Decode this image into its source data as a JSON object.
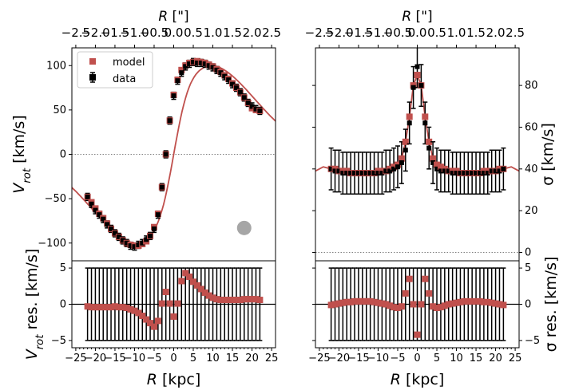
{
  "chart_data": [
    {
      "panel": "rotation-curve",
      "type": "scatter",
      "ylabel": "V_rot [km/s]",
      "top_xlabel": "R [\"]",
      "ylim": [
        -120,
        120
      ],
      "xlim": [
        -26,
        26
      ],
      "yticks": [
        -100,
        -50,
        0,
        50,
        100
      ],
      "top_xticks": [
        "−2.5",
        "−2.0",
        "−1.5",
        "−1.0",
        "−0.5",
        "0.0",
        "0.5",
        "1.0",
        "1.5",
        "2.0",
        "2.5"
      ],
      "legend": {
        "position": "upper left",
        "entries": [
          "model",
          "data"
        ]
      },
      "colors": {
        "model": "#c0504d",
        "data": "#000000",
        "beam": "#a6a6a6"
      },
      "beam_marker": {
        "x": 18,
        "y": -83
      },
      "x": [
        -22,
        -21,
        -20,
        -19,
        -18,
        -17,
        -16,
        -15,
        -14,
        -13,
        -12,
        -11,
        -10,
        -9,
        -8,
        -7,
        -6,
        -5,
        -4,
        -3,
        -2,
        -1,
        0,
        1,
        2,
        3,
        4,
        5,
        6,
        7,
        8,
        9,
        10,
        11,
        12,
        13,
        14,
        15,
        16,
        17,
        18,
        19,
        20,
        21,
        22
      ],
      "model": [
        -48,
        -54,
        -61,
        -67,
        -72,
        -78,
        -84,
        -89,
        -93,
        -97,
        -100,
        -102,
        -103,
        -103,
        -101,
        -98,
        -92,
        -82,
        -67,
        -37,
        0,
        38,
        67,
        84,
        95,
        100,
        103,
        104,
        105,
        104,
        103,
        101,
        99,
        96,
        93,
        89,
        85,
        80,
        75,
        70,
        64,
        58,
        52,
        50,
        49
      ],
      "data": [
        -48,
        -56,
        -63,
        -68,
        -73,
        -79,
        -84,
        -89,
        -93,
        -97,
        -100,
        -103,
        -104,
        -102,
        -100,
        -96,
        -92,
        -84,
        -68,
        -37,
        0,
        38,
        66,
        83,
        92,
        99,
        102,
        104,
        103,
        103,
        102,
        100,
        98,
        95,
        92,
        88,
        84,
        79,
        75,
        70,
        64,
        58,
        54,
        51,
        49
      ],
      "err": 4
    },
    {
      "panel": "dispersion",
      "type": "scatter",
      "ylabel": "σ [km/s]",
      "top_xlabel": "R [\"]",
      "ylim": [
        -4,
        98
      ],
      "xlim": [
        -26,
        26
      ],
      "yticks": [
        0,
        20,
        40,
        60,
        80
      ],
      "top_xticks": [
        "−2.5",
        "−2.0",
        "−1.5",
        "−1.0",
        "−0.5",
        "0.0",
        "0.5",
        "1.0",
        "1.5",
        "2.0",
        "2.5"
      ],
      "x": [
        -22,
        -21,
        -20,
        -19,
        -18,
        -17,
        -16,
        -15,
        -14,
        -13,
        -12,
        -11,
        -10,
        -9,
        -8,
        -7,
        -6,
        -5,
        -4,
        -3,
        -2,
        -1,
        0,
        1,
        2,
        3,
        4,
        5,
        6,
        7,
        8,
        9,
        10,
        11,
        12,
        13,
        14,
        15,
        16,
        17,
        18,
        19,
        20,
        21,
        22
      ],
      "model": [
        40,
        40,
        39,
        39,
        39,
        38,
        38,
        38,
        38,
        38,
        38,
        38,
        39,
        39,
        39,
        40,
        41,
        42,
        45,
        53,
        65,
        80,
        85,
        80,
        65,
        53,
        45,
        42,
        41,
        40,
        39,
        39,
        39,
        38,
        38,
        38,
        38,
        38,
        38,
        39,
        39,
        39,
        39,
        40,
        40
      ],
      "data": [
        40,
        39,
        39,
        38,
        38,
        38,
        38,
        38,
        38,
        38,
        38,
        38,
        38,
        38,
        39,
        39,
        40,
        41,
        43,
        49,
        62,
        79,
        89,
        80,
        62,
        50,
        43,
        40,
        39,
        39,
        39,
        38,
        38,
        38,
        38,
        38,
        38,
        38,
        38,
        38,
        38,
        39,
        39,
        39,
        40
      ],
      "err": 10
    },
    {
      "panel": "rotation-residuals",
      "type": "scatter",
      "ylabel": "V_rot res. [km/s]",
      "xlabel": "R [kpc]",
      "ylim": [
        -6,
        6
      ],
      "xlim": [
        -26,
        26
      ],
      "yticks": [
        -5,
        0,
        5
      ],
      "xticks": [
        -25,
        -20,
        -15,
        -10,
        -5,
        0,
        5,
        10,
        15,
        20,
        25
      ],
      "x": [
        -22,
        -21,
        -20,
        -19,
        -18,
        -17,
        -16,
        -15,
        -14,
        -13,
        -12,
        -11,
        -10,
        -9,
        -8,
        -7,
        -6,
        -5,
        -4,
        -3,
        -2,
        -1,
        0,
        1,
        2,
        3,
        4,
        5,
        6,
        7,
        8,
        9,
        10,
        11,
        12,
        13,
        14,
        15,
        16,
        17,
        18,
        19,
        20,
        21,
        22
      ],
      "residual": [
        -0.3,
        -0.4,
        -0.4,
        -0.4,
        -0.4,
        -0.4,
        -0.4,
        -0.3,
        -0.4,
        -0.4,
        -0.5,
        -0.7,
        -0.9,
        -1.2,
        -1.6,
        -2.1,
        -2.6,
        -3.1,
        -2.3,
        0.1,
        1.7,
        0.1,
        -1.7,
        0.1,
        3.2,
        4.3,
        3.8,
        3.1,
        2.6,
        2.1,
        1.6,
        1.2,
        0.9,
        0.7,
        0.6,
        0.6,
        0.6,
        0.6,
        0.6,
        0.6,
        0.7,
        0.7,
        0.7,
        0.7,
        0.6
      ],
      "err": 5
    },
    {
      "panel": "dispersion-residuals",
      "type": "scatter",
      "ylabel": "σ res. [km/s]",
      "xlabel": "R [kpc]",
      "ylim": [
        -6,
        6
      ],
      "xlim": [
        -26,
        26
      ],
      "yticks": [
        -5,
        0,
        5
      ],
      "xticks": [
        -25,
        -20,
        -15,
        -10,
        -5,
        0,
        5,
        10,
        15,
        20,
        25
      ],
      "x": [
        -22,
        -21,
        -20,
        -19,
        -18,
        -17,
        -16,
        -15,
        -14,
        -13,
        -12,
        -11,
        -10,
        -9,
        -8,
        -7,
        -6,
        -5,
        -4,
        -3,
        -2,
        -1,
        0,
        1,
        2,
        3,
        4,
        5,
        6,
        7,
        8,
        9,
        10,
        11,
        12,
        13,
        14,
        15,
        16,
        17,
        18,
        19,
        20,
        21,
        22
      ],
      "residual": [
        -0.1,
        0,
        0.1,
        0.2,
        0.3,
        0.3,
        0.4,
        0.4,
        0.4,
        0.4,
        0.4,
        0.3,
        0.2,
        0.1,
        0,
        -0.2,
        -0.4,
        -0.5,
        -0.3,
        1.5,
        3.5,
        0,
        -4.2,
        0,
        3.5,
        1.5,
        -0.3,
        -0.5,
        -0.4,
        -0.2,
        0,
        0.1,
        0.2,
        0.3,
        0.4,
        0.4,
        0.4,
        0.4,
        0.4,
        0.3,
        0.3,
        0.2,
        0.1,
        0,
        -0.1
      ],
      "err": 5
    }
  ],
  "labels": {
    "top_axis_title": "R [\"]",
    "bottom_axis_title": "R [kpc]",
    "legend_model": "model",
    "legend_data": "data"
  }
}
